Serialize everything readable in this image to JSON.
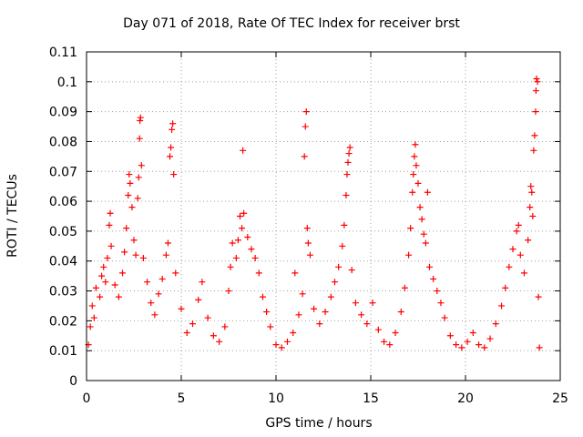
{
  "chart_data": {
    "type": "scatter",
    "title": "Day 071 of 2018, Rate Of TEC Index for receiver brst",
    "xlabel": "GPS time / hours",
    "ylabel": "ROTI / TECUs",
    "xlim": [
      0,
      25
    ],
    "ylim": [
      0,
      0.11
    ],
    "xticks": [
      "0",
      "5",
      "10",
      "15",
      "20",
      "25"
    ],
    "yticks": [
      "0",
      "0.01",
      "0.02",
      "0.03",
      "0.04",
      "0.05",
      "0.06",
      "0.07",
      "0.08",
      "0.09",
      "0.1",
      "0.11"
    ],
    "grid": true,
    "legend": "none",
    "marker": "+",
    "color": "#ff0000",
    "series": [
      {
        "points": [
          [
            0.1,
            0.012
          ],
          [
            0.2,
            0.018
          ],
          [
            0.3,
            0.025
          ],
          [
            0.4,
            0.021
          ],
          [
            0.5,
            0.031
          ],
          [
            0.7,
            0.028
          ],
          [
            0.8,
            0.035
          ],
          [
            0.9,
            0.038
          ],
          [
            1.0,
            0.033
          ],
          [
            1.1,
            0.041
          ],
          [
            1.2,
            0.052
          ],
          [
            1.25,
            0.056
          ],
          [
            1.3,
            0.045
          ],
          [
            1.5,
            0.032
          ],
          [
            1.7,
            0.028
          ],
          [
            1.9,
            0.036
          ],
          [
            2.0,
            0.043
          ],
          [
            2.1,
            0.051
          ],
          [
            2.2,
            0.062
          ],
          [
            2.25,
            0.069
          ],
          [
            2.3,
            0.066
          ],
          [
            2.4,
            0.058
          ],
          [
            2.5,
            0.047
          ],
          [
            2.6,
            0.042
          ],
          [
            2.7,
            0.061
          ],
          [
            2.75,
            0.068
          ],
          [
            2.8,
            0.081
          ],
          [
            2.82,
            0.087
          ],
          [
            2.85,
            0.088
          ],
          [
            2.9,
            0.072
          ],
          [
            3.0,
            0.041
          ],
          [
            3.2,
            0.033
          ],
          [
            3.4,
            0.026
          ],
          [
            3.6,
            0.022
          ],
          [
            3.8,
            0.029
          ],
          [
            4.0,
            0.034
          ],
          [
            4.2,
            0.042
          ],
          [
            4.3,
            0.046
          ],
          [
            4.4,
            0.075
          ],
          [
            4.45,
            0.078
          ],
          [
            4.5,
            0.084
          ],
          [
            4.55,
            0.086
          ],
          [
            4.6,
            0.069
          ],
          [
            4.7,
            0.036
          ],
          [
            5.0,
            0.024
          ],
          [
            5.3,
            0.016
          ],
          [
            5.6,
            0.019
          ],
          [
            5.9,
            0.027
          ],
          [
            6.1,
            0.033
          ],
          [
            6.4,
            0.021
          ],
          [
            6.7,
            0.015
          ],
          [
            7.0,
            0.013
          ],
          [
            7.3,
            0.018
          ],
          [
            7.5,
            0.03
          ],
          [
            7.6,
            0.038
          ],
          [
            7.7,
            0.046
          ],
          [
            7.9,
            0.041
          ],
          [
            8.0,
            0.047
          ],
          [
            8.1,
            0.055
          ],
          [
            8.2,
            0.051
          ],
          [
            8.25,
            0.077
          ],
          [
            8.3,
            0.056
          ],
          [
            8.5,
            0.048
          ],
          [
            8.7,
            0.044
          ],
          [
            8.9,
            0.041
          ],
          [
            9.1,
            0.036
          ],
          [
            9.3,
            0.028
          ],
          [
            9.5,
            0.023
          ],
          [
            9.7,
            0.018
          ],
          [
            10.0,
            0.012
          ],
          [
            10.3,
            0.011
          ],
          [
            10.6,
            0.013
          ],
          [
            10.9,
            0.016
          ],
          [
            11.0,
            0.036
          ],
          [
            11.2,
            0.022
          ],
          [
            11.4,
            0.029
          ],
          [
            11.5,
            0.075
          ],
          [
            11.55,
            0.085
          ],
          [
            11.6,
            0.09
          ],
          [
            11.65,
            0.051
          ],
          [
            11.7,
            0.046
          ],
          [
            11.8,
            0.042
          ],
          [
            12.0,
            0.024
          ],
          [
            12.3,
            0.019
          ],
          [
            12.6,
            0.023
          ],
          [
            12.9,
            0.028
          ],
          [
            13.1,
            0.033
          ],
          [
            13.3,
            0.038
          ],
          [
            13.5,
            0.045
          ],
          [
            13.6,
            0.052
          ],
          [
            13.7,
            0.062
          ],
          [
            13.75,
            0.069
          ],
          [
            13.8,
            0.073
          ],
          [
            13.85,
            0.076
          ],
          [
            13.9,
            0.078
          ],
          [
            14.0,
            0.037
          ],
          [
            14.2,
            0.026
          ],
          [
            14.5,
            0.022
          ],
          [
            14.8,
            0.019
          ],
          [
            15.1,
            0.026
          ],
          [
            15.4,
            0.017
          ],
          [
            15.7,
            0.013
          ],
          [
            16.0,
            0.012
          ],
          [
            16.3,
            0.016
          ],
          [
            16.6,
            0.023
          ],
          [
            16.8,
            0.031
          ],
          [
            17.0,
            0.042
          ],
          [
            17.1,
            0.051
          ],
          [
            17.2,
            0.063
          ],
          [
            17.25,
            0.069
          ],
          [
            17.3,
            0.075
          ],
          [
            17.35,
            0.079
          ],
          [
            17.4,
            0.072
          ],
          [
            17.5,
            0.066
          ],
          [
            17.6,
            0.058
          ],
          [
            17.7,
            0.054
          ],
          [
            17.8,
            0.049
          ],
          [
            17.9,
            0.046
          ],
          [
            18.0,
            0.063
          ],
          [
            18.1,
            0.038
          ],
          [
            18.3,
            0.034
          ],
          [
            18.5,
            0.03
          ],
          [
            18.7,
            0.026
          ],
          [
            18.9,
            0.021
          ],
          [
            19.2,
            0.015
          ],
          [
            19.5,
            0.012
          ],
          [
            19.8,
            0.011
          ],
          [
            20.1,
            0.013
          ],
          [
            20.4,
            0.016
          ],
          [
            20.7,
            0.012
          ],
          [
            21.0,
            0.011
          ],
          [
            21.3,
            0.014
          ],
          [
            21.6,
            0.019
          ],
          [
            21.9,
            0.025
          ],
          [
            22.1,
            0.031
          ],
          [
            22.3,
            0.038
          ],
          [
            22.5,
            0.044
          ],
          [
            22.7,
            0.05
          ],
          [
            22.8,
            0.052
          ],
          [
            22.9,
            0.042
          ],
          [
            23.1,
            0.036
          ],
          [
            23.3,
            0.047
          ],
          [
            23.4,
            0.058
          ],
          [
            23.45,
            0.065
          ],
          [
            23.5,
            0.063
          ],
          [
            23.55,
            0.055
          ],
          [
            23.6,
            0.077
          ],
          [
            23.65,
            0.082
          ],
          [
            23.7,
            0.09
          ],
          [
            23.72,
            0.097
          ],
          [
            23.75,
            0.101
          ],
          [
            23.8,
            0.1
          ],
          [
            23.85,
            0.028
          ],
          [
            23.9,
            0.011
          ]
        ]
      }
    ]
  }
}
